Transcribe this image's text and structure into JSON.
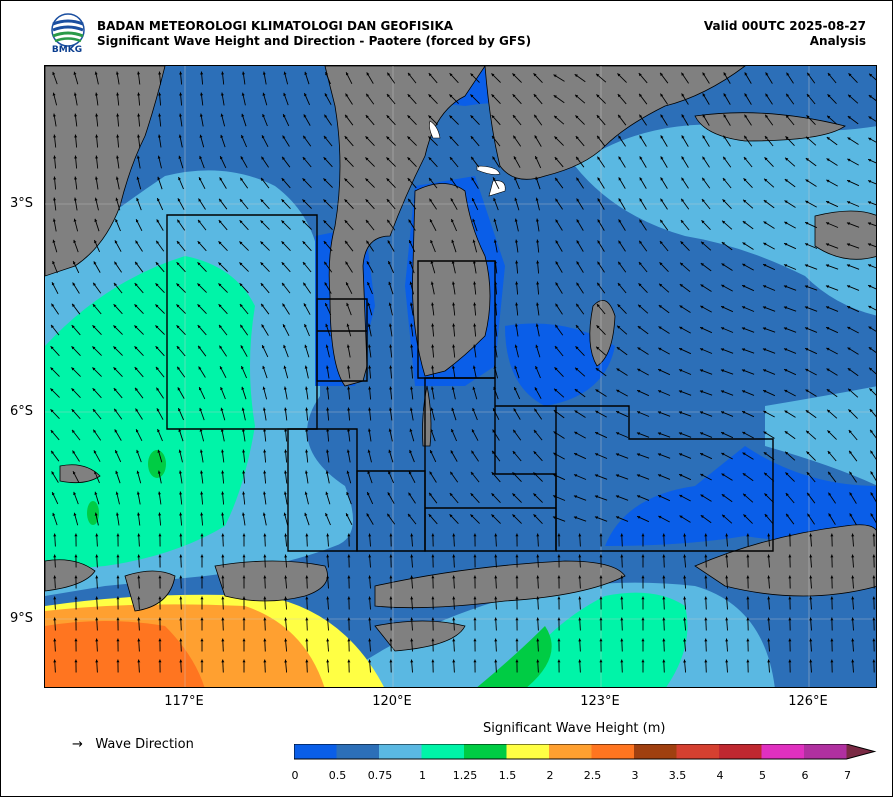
{
  "header": {
    "agency": "BADAN METEOROLOGI KLIMATOLOGI DAN GEOFISIKA",
    "subtitle": "Significant Wave Height and Direction - Paotere (forced by GFS)",
    "valid": "Valid 00UTC 2025-08-27",
    "analysis": "Analysis"
  },
  "logo": {
    "text": "BMKG"
  },
  "axes": {
    "lat_labels": [
      "3°S",
      "6°S",
      "9°S"
    ],
    "lon_labels": [
      "117°E",
      "120°E",
      "123°E",
      "126°E"
    ]
  },
  "legend": {
    "direction_label": "Wave Direction",
    "arrow_glyph": "→"
  },
  "colorbar": {
    "title": "Significant Wave Height (m)",
    "ticks": [
      "0",
      "0.5",
      "0.75",
      "1",
      "1.25",
      "1.5",
      "2",
      "2.5",
      "3",
      "3.5",
      "4",
      "5",
      "6",
      "7"
    ],
    "colors": [
      "#0a5ee8",
      "#2c6fb8",
      "#5ab8e2",
      "#00f4a8",
      "#00cc44",
      "#ffff44",
      "#ffa030",
      "#ff7520",
      "#a04010",
      "#d54030",
      "#c02830",
      "#e030c0",
      "#b030a0",
      "#7a2a44"
    ]
  }
}
